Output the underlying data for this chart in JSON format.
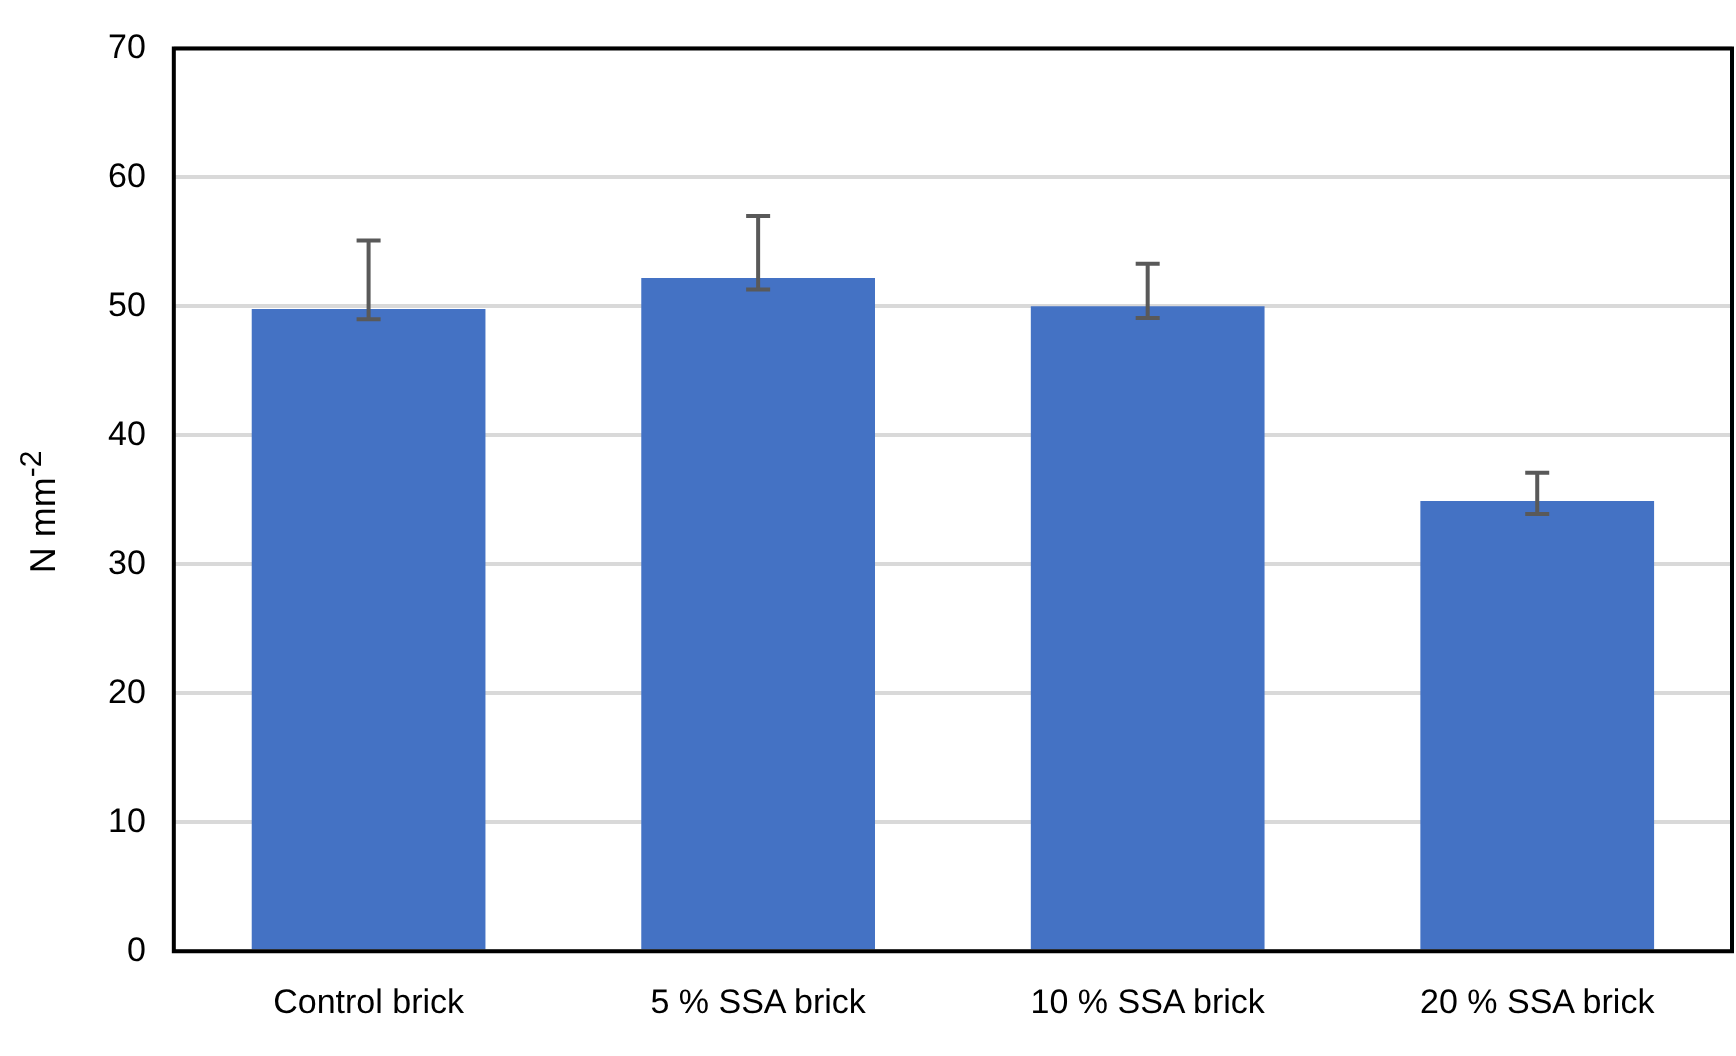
{
  "chart_data": {
    "type": "bar",
    "ylabel": "N mm$^{-2}$",
    "categories": [
      "Control brick",
      "5 % SSA brick",
      "10 % SSA brick",
      "20 % SSA brick"
    ],
    "values": [
      49.8,
      52.2,
      50.0,
      34.9
    ],
    "errors": [
      [
        49.0,
        55.1
      ],
      [
        51.3,
        57.0
      ],
      [
        49.1,
        53.3
      ],
      [
        33.9,
        37.1
      ]
    ],
    "color": "#4472c4",
    "ylim": [
      0,
      70
    ],
    "yticks": [
      0,
      10,
      20,
      30,
      40,
      50,
      60,
      70
    ],
    "grid": "y"
  }
}
